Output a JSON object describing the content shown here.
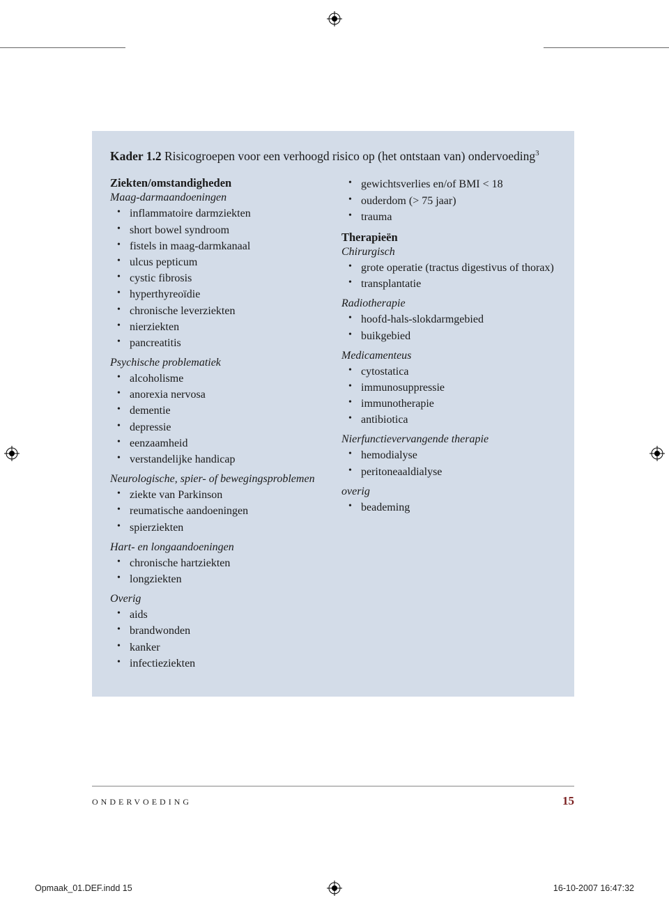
{
  "title": {
    "prefix": "Kader 1.2",
    "rest": "  Risicogroepen voor een verhoogd risico op (het ontstaan van) ondervoeding",
    "sup": "3"
  },
  "left": {
    "heading1": "Ziekten/omstandigheden",
    "sub1": "Maag-darmaandoeningen",
    "list1": [
      "inflammatoire darmziekten",
      "short bowel syndroom",
      "fistels in maag-darmkanaal",
      "ulcus pepticum",
      "cystic fibrosis",
      "hyperthyreoïdie",
      "chronische leverziekten",
      "nierziekten",
      "pancreatitis"
    ],
    "sub2": "Psychische problematiek",
    "list2": [
      "alcoholisme",
      "anorexia nervosa",
      "dementie",
      "depressie",
      "eenzaamheid",
      "verstandelijke handicap"
    ],
    "sub3": "Neurologische, spier- of bewegingsproblemen",
    "list3": [
      "ziekte van Parkinson",
      "reumatische aandoeningen",
      "spierziekten"
    ],
    "sub4": "Hart- en longaandoeningen",
    "list4": [
      "chronische hartziekten",
      "longziekten"
    ],
    "sub5": "Overig",
    "list5": [
      "aids",
      "brandwonden",
      "kanker",
      "infectieziekten"
    ]
  },
  "right": {
    "toplist": [
      "gewichtsverlies en/of BMI < 18",
      "ouderdom (> 75 jaar)",
      "trauma"
    ],
    "heading2": "Therapieën",
    "sub1": "Chirurgisch",
    "list1": [
      "grote operatie (tractus digestivus of thorax)",
      "transplantatie"
    ],
    "sub2": "Radiotherapie",
    "list2": [
      "hoofd-hals-slokdarmgebied",
      "buikgebied"
    ],
    "sub3": "Medicamenteus",
    "list3": [
      "cytostatica",
      "immunosuppressie",
      "immunotherapie",
      "antibiotica"
    ],
    "sub4": "Nierfunctievervangende therapie",
    "list4": [
      "hemodialyse",
      "peritoneaaldialyse"
    ],
    "sub5": "overig",
    "list5": [
      "beademing"
    ]
  },
  "footer": {
    "word": "ONDERVOEDING",
    "page": "15"
  },
  "imprint": {
    "left": "Opmaak_01.DEF.indd   15",
    "right": "16-10-2007   16:47:32"
  },
  "colors": {
    "box_bg": "#d3dce8",
    "page_num": "#7a1f1f"
  }
}
